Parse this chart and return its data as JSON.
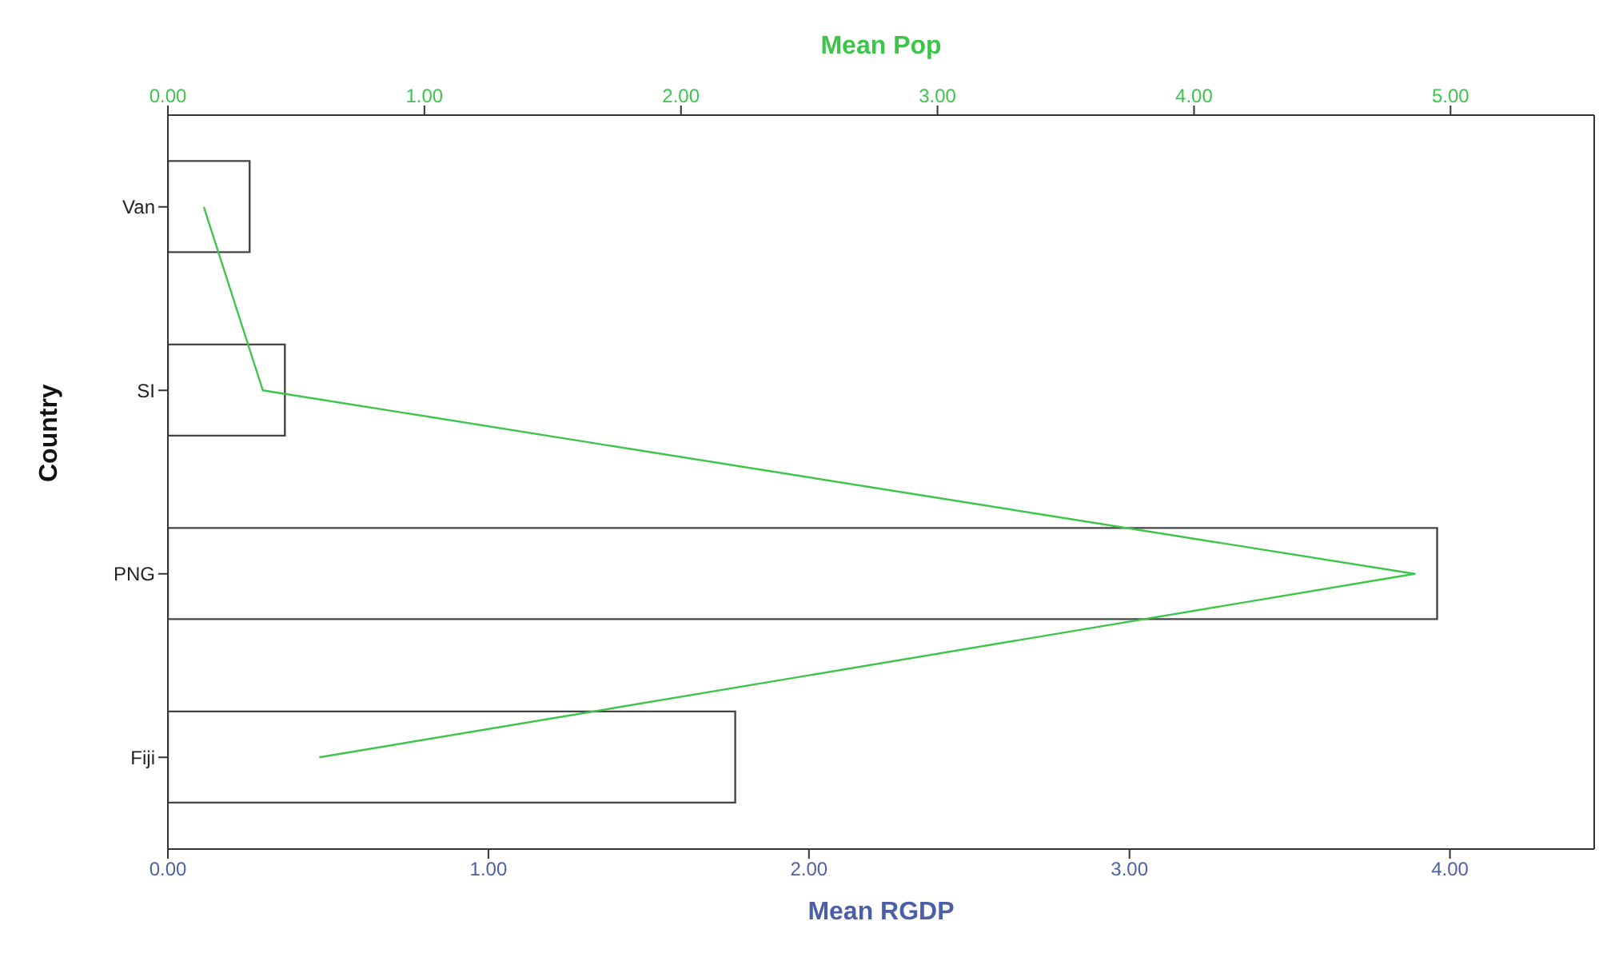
{
  "chart_data": {
    "type": "bar",
    "orientation": "horizontal",
    "categories": [
      "Van",
      "SI",
      "PNG",
      "Fiji"
    ],
    "series": [
      {
        "color": "#ffffff",
        "values": [
          0.255,
          0.365,
          3.96,
          1.77
        ]
      },
      {
        "type": "line",
        "axis": "x2",
        "color": "#3dc44a",
        "values": [
          0.14,
          0.37,
          4.86,
          0.59
        ]
      }
    ],
    "xlabel": "Mean RGDP",
    "x2label": "Mean Pop",
    "ylabel": "Country",
    "xlim": [
      0,
      4.45
    ],
    "xticks": [
      {
        "value": 0,
        "label": "0.00"
      },
      {
        "value": 1,
        "label": "1.00"
      },
      {
        "value": 2,
        "label": "2.00"
      },
      {
        "value": 3,
        "label": "3.00"
      },
      {
        "value": 4,
        "label": "4.00"
      }
    ],
    "x2lim": [
      0,
      5.56
    ],
    "x2ticks": [
      {
        "value": 0,
        "label": "0.00"
      },
      {
        "value": 1,
        "label": "1.00"
      },
      {
        "value": 2,
        "label": "2.00"
      },
      {
        "value": 3,
        "label": "3.00"
      },
      {
        "value": 4,
        "label": "4.00"
      },
      {
        "value": 5,
        "label": "5.00"
      }
    ],
    "grid": false,
    "legend": false,
    "marker": "none",
    "line_style": "solid"
  }
}
